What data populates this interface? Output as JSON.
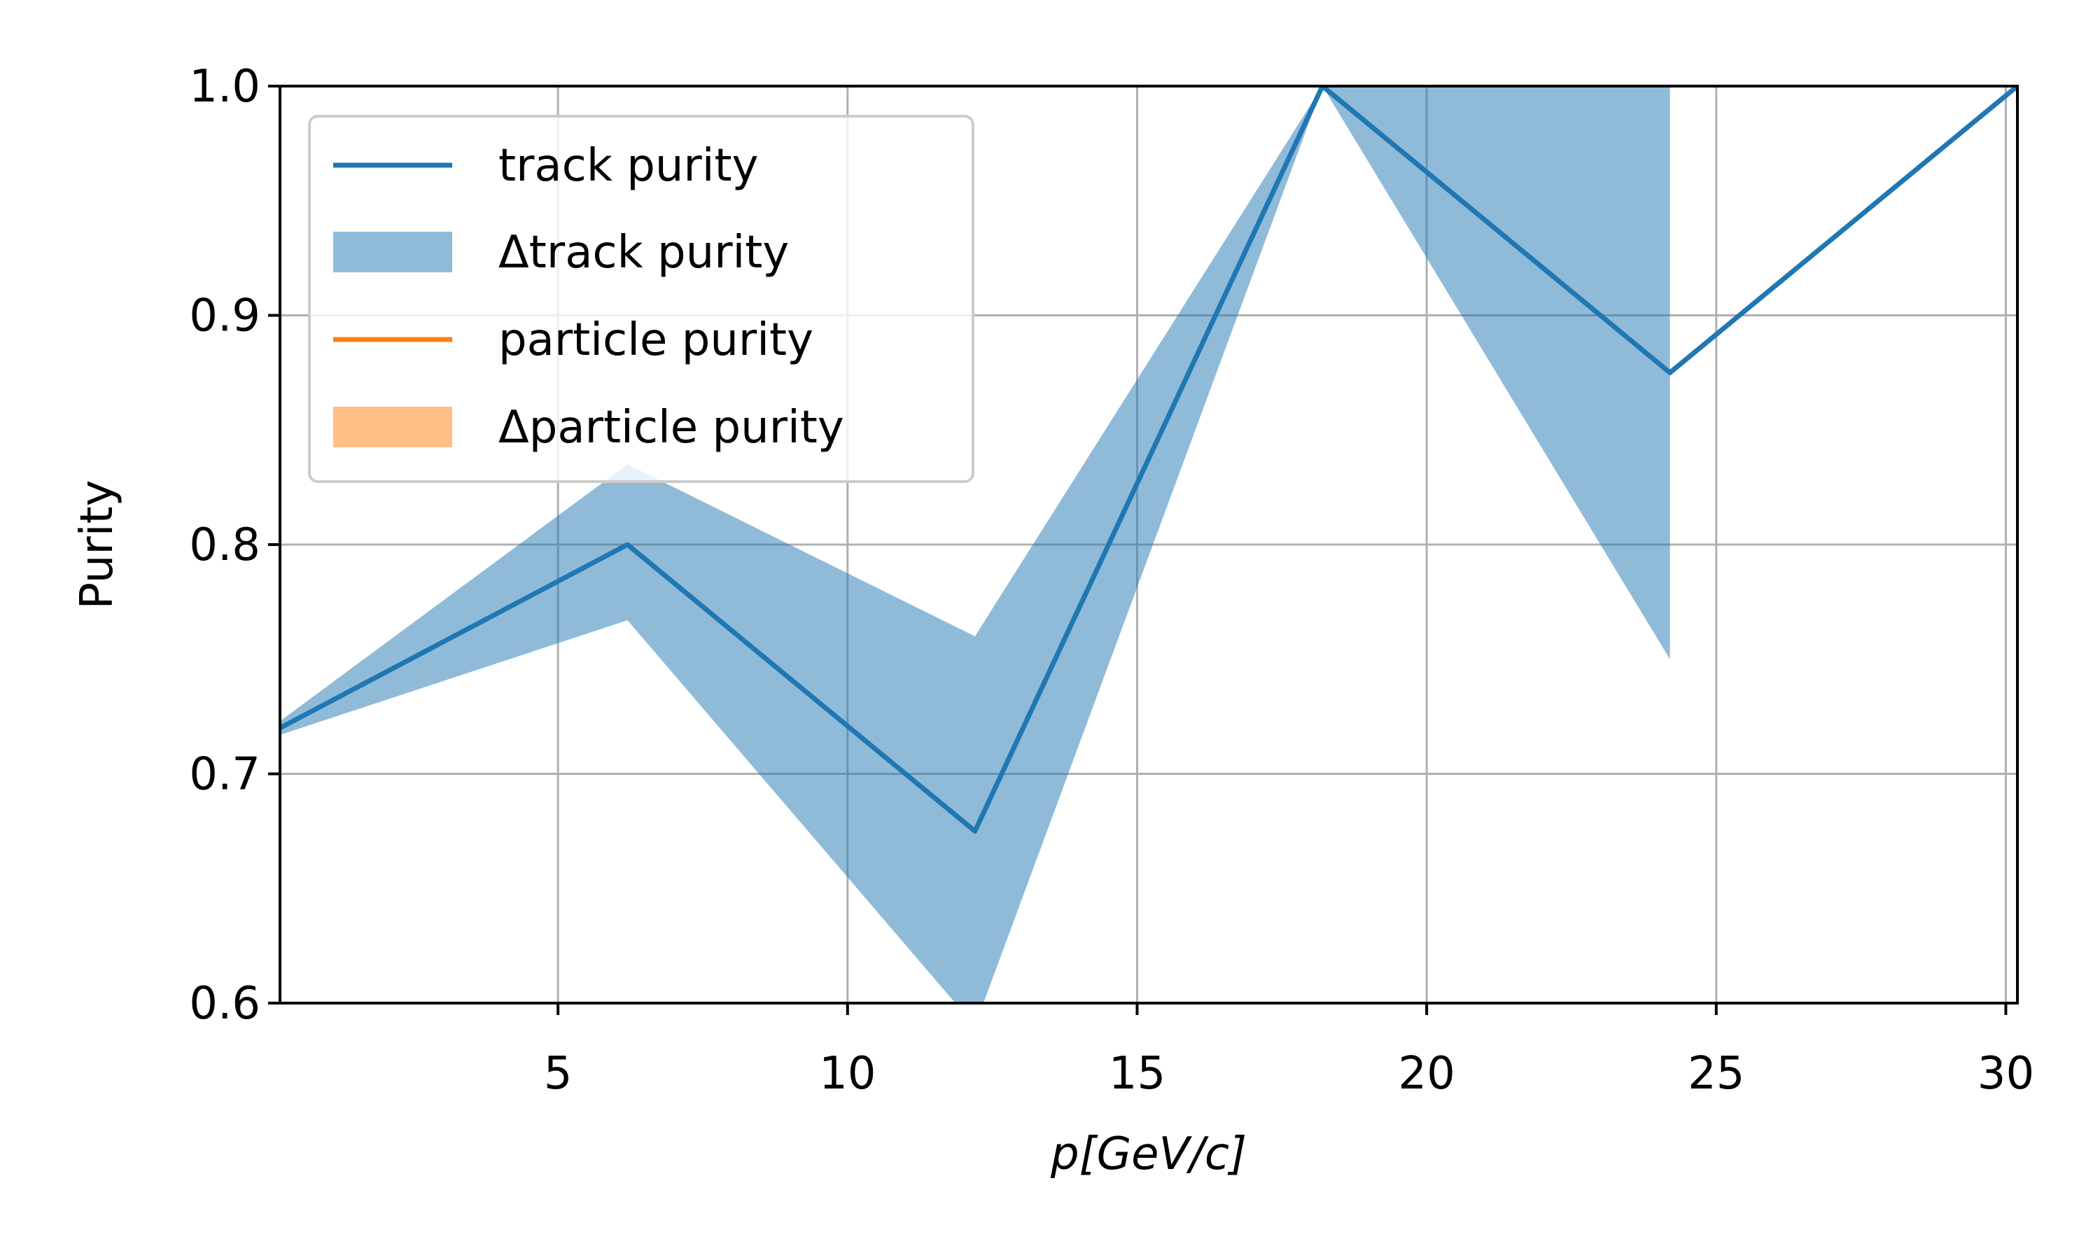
{
  "chart_data": {
    "type": "line",
    "xlabel": "p[GeV/c]",
    "ylabel": "Purity",
    "xlim": [
      0.2,
      30.2
    ],
    "ylim": [
      0.6,
      1.0
    ],
    "x_ticks": [
      5,
      10,
      15,
      20,
      25,
      30
    ],
    "y_ticks": [
      0.6,
      0.7,
      0.8,
      0.9,
      1.0
    ],
    "x_tick_labels": [
      "5",
      "10",
      "15",
      "20",
      "25",
      "30"
    ],
    "y_tick_labels": [
      "0.6",
      "0.7",
      "0.8",
      "0.9",
      "1.0"
    ],
    "grid": true,
    "legend_position": "upper-left",
    "series": [
      {
        "name": "track purity",
        "kind": "line",
        "color": "#1f77b4",
        "x": [
          0.2,
          6.2,
          12.2,
          18.2,
          24.2,
          30.2
        ],
        "y": [
          0.72,
          0.8,
          0.675,
          1.0,
          0.875,
          1.0
        ]
      },
      {
        "name": "Δtrack purity",
        "kind": "band",
        "color": "#1f77b4",
        "opacity": 0.5,
        "x": [
          0.2,
          6.2,
          12.2,
          18.2,
          24.2
        ],
        "lower": [
          0.717,
          0.767,
          0.59,
          1.0,
          0.75
        ],
        "upper": [
          0.723,
          0.835,
          0.76,
          1.0,
          1.0
        ]
      },
      {
        "name": "particle purity",
        "kind": "line",
        "color": "#ff7f0e",
        "x": [],
        "y": []
      },
      {
        "name": "Δparticle purity",
        "kind": "band",
        "color": "#ff7f0e",
        "opacity": 0.5,
        "x": [],
        "lower": [],
        "upper": []
      }
    ]
  }
}
